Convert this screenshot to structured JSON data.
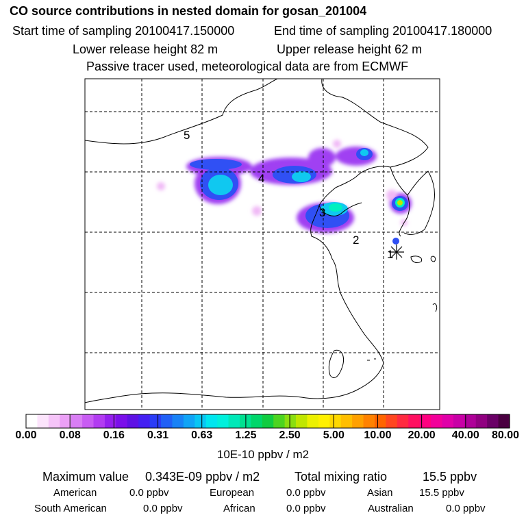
{
  "header": {
    "title": "CO  source contributions in nested domain for gosan_201004",
    "start_label": "Start time of sampling 20100417.150000",
    "end_label": "End time of sampling 20100417.180000",
    "lower_label": "Lower release height   82 m",
    "upper_label": "Upper release height   62 m",
    "note": "Passive tracer used, meteorological data are from ECMWF"
  },
  "map": {
    "point_labels": [
      "1",
      "2",
      "3",
      "4",
      "5"
    ]
  },
  "colorbar": {
    "ticks": [
      "0.00",
      "0.08",
      "0.16",
      "0.31",
      "0.63",
      "1.25",
      "2.50",
      "5.00",
      "10.00",
      "20.00",
      "40.00",
      "80.00"
    ],
    "unit": "10E-10 ppbv / m2",
    "colors": [
      "#ffffff",
      "#fce4fc",
      "#f5c4f8",
      "#eba0f6",
      "#d97ef4",
      "#c85cf3",
      "#b23cf1",
      "#9520ee",
      "#7a10ea",
      "#5e12e4",
      "#4420f2",
      "#2a3cf6",
      "#2060f6",
      "#1882f6",
      "#10a4f6",
      "#08c6f4",
      "#00e6ef",
      "#00f0dc",
      "#00e8b8",
      "#00e090",
      "#00d66a",
      "#10cc40",
      "#4cd420",
      "#8ade10",
      "#c0e600",
      "#ecf000",
      "#fff000",
      "#ffd800",
      "#ffbe00",
      "#ffa000",
      "#ff8200",
      "#ff6400",
      "#ff4620",
      "#ff2a40",
      "#ff1060",
      "#ff0080",
      "#f2009a",
      "#e000a8",
      "#c800a6",
      "#ae0098",
      "#900080",
      "#6a0066",
      "#4a0040"
    ]
  },
  "stats": {
    "max_label": "Maximum value",
    "max_value": "0.343E-09 ppbv / m2",
    "total_label": "Total mixing ratio",
    "total_value": "15.5 ppbv",
    "american_label": "American",
    "american_value": "0.0 ppbv",
    "european_label": "European",
    "european_value": "0.0 ppbv",
    "asian_label": "Asian",
    "asian_value": "15.5 ppbv",
    "south_american_label": "South American",
    "south_american_value": "0.0 ppbv",
    "african_label": "African",
    "african_value": "0.0 ppbv",
    "australian_label": "Australian",
    "australian_value": "0.0 ppbv"
  }
}
